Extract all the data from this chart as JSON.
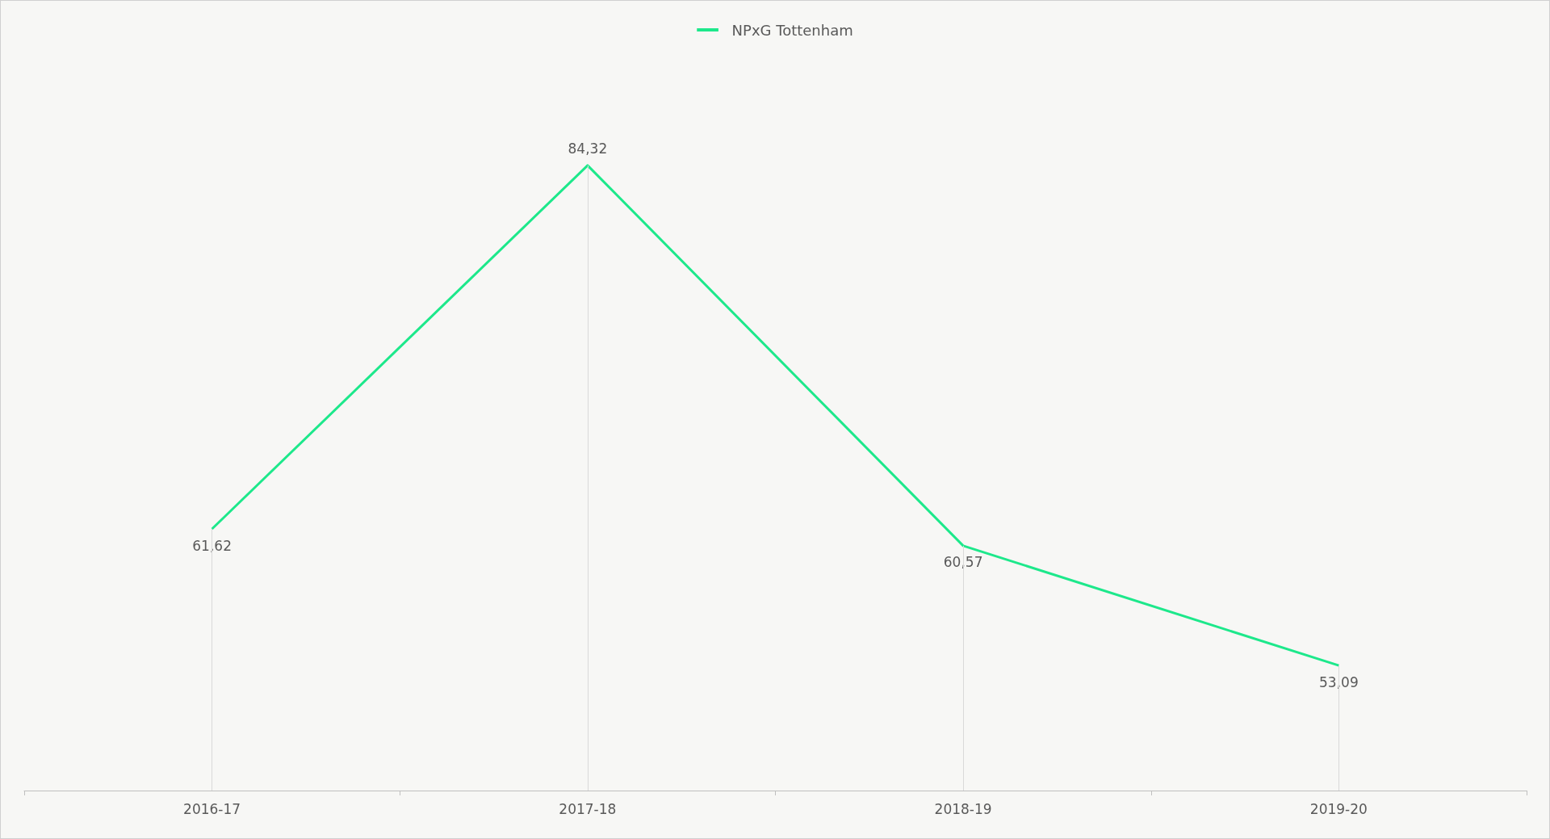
{
  "chart_data": {
    "type": "line",
    "categories": [
      "2016-17",
      "2017-18",
      "2018-19",
      "2019-20"
    ],
    "series": [
      {
        "name": "NPxG Tottenham",
        "color": "#1de88b",
        "values": [
          61.62,
          84.32,
          60.57,
          53.09
        ],
        "value_labels": [
          "61,62",
          "84,32",
          "60,57",
          "53,09"
        ]
      }
    ],
    "legend": "top",
    "grid": "x",
    "marker": "none",
    "line_style": "solid"
  }
}
